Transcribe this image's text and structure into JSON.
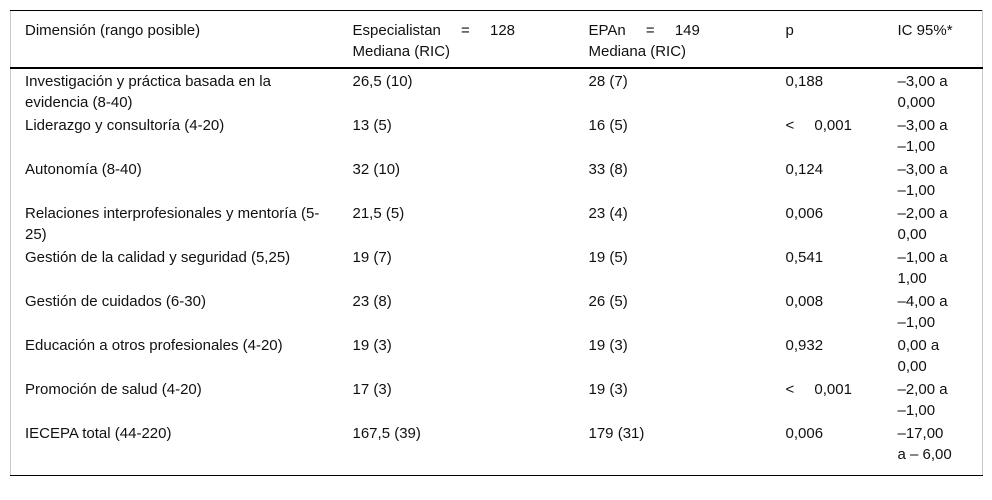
{
  "colors": {
    "text": "#111111",
    "rule": "#000000",
    "side_border": "#c9c9c9",
    "background": "#ffffff"
  },
  "table": {
    "header": {
      "dimension": "Dimensión (rango posible)",
      "especialista_line1": "Especialistan = 128",
      "especialista_line2": "Mediana (RIC)",
      "epa_line1": "EPAn = 149",
      "epa_line2": "Mediana (RIC)",
      "p": "p",
      "ic": "IC 95%*"
    },
    "rows": [
      {
        "dimension": "Investigación y práctica basada en la evidencia (8-40)",
        "especialista": "26,5 (10)",
        "epa": "28 (7)",
        "p": "0,188",
        "ic": "–3,00 a 0,000"
      },
      {
        "dimension": "Liderazgo y consultoría (4-20)",
        "especialista": "13 (5)",
        "epa": "16 (5)",
        "p": "< 0,001",
        "ic": "–3,00 a –1,00"
      },
      {
        "dimension": "Autonomía (8-40)",
        "especialista": "32 (10)",
        "epa": "33 (8)",
        "p": "0,124",
        "ic": "–3,00 a –1,00"
      },
      {
        "dimension": "Relaciones interprofesionales y mentoría (5-25)",
        "especialista": "21,5 (5)",
        "epa": "23 (4)",
        "p": "0,006",
        "ic": "–2,00 a 0,00"
      },
      {
        "dimension": "Gestión de la calidad y seguridad (5,25)",
        "especialista": "19 (7)",
        "epa": "19 (5)",
        "p": "0,541",
        "ic": "–1,00 a 1,00"
      },
      {
        "dimension": "Gestión de cuidados (6-30)",
        "especialista": "23 (8)",
        "epa": "26 (5)",
        "p": "0,008",
        "ic": "–4,00 a –1,00"
      },
      {
        "dimension": "Educación a otros profesionales (4-20)",
        "especialista": "19 (3)",
        "epa": "19 (3)",
        "p": "0,932",
        "ic": "0,00 a 0,00"
      },
      {
        "dimension": "Promoción de salud (4-20)",
        "especialista": "17 (3)",
        "epa": "19 (3)",
        "p": "< 0,001",
        "ic": "–2,00 a –1,00"
      },
      {
        "dimension": "IECEPA total (44-220)",
        "especialista": "167,5 (39)",
        "epa": "179 (31)",
        "p": "0,006",
        "ic": "–17,00 a – 6,00"
      }
    ]
  }
}
